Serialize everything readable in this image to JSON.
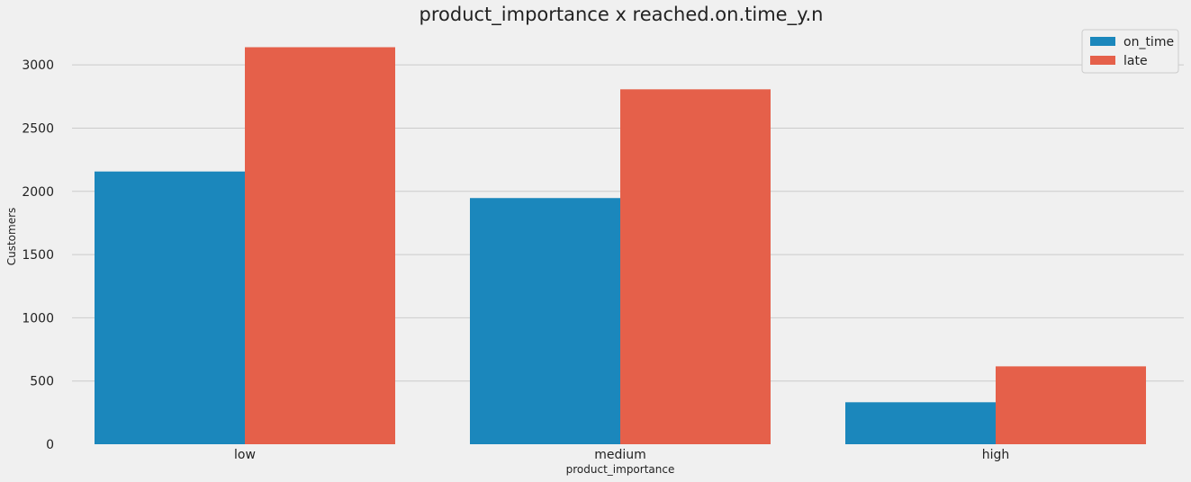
{
  "chart_data": {
    "type": "bar",
    "title": "product_importance x reached.on.time_y.n",
    "xlabel": "product_importance",
    "ylabel": "Customers",
    "categories": [
      "low",
      "medium",
      "high"
    ],
    "series": [
      {
        "name": "on_time",
        "color": "#1b87bc",
        "values": [
          2157,
          1947,
          332
        ]
      },
      {
        "name": "late",
        "color": "#e5604a",
        "values": [
          3140,
          2807,
          616
        ]
      }
    ],
    "yticks": [
      0,
      500,
      1000,
      1500,
      2000,
      2500,
      3000
    ],
    "ylim": [
      0,
      3300
    ],
    "grid": true,
    "legend_position": "top-right"
  }
}
